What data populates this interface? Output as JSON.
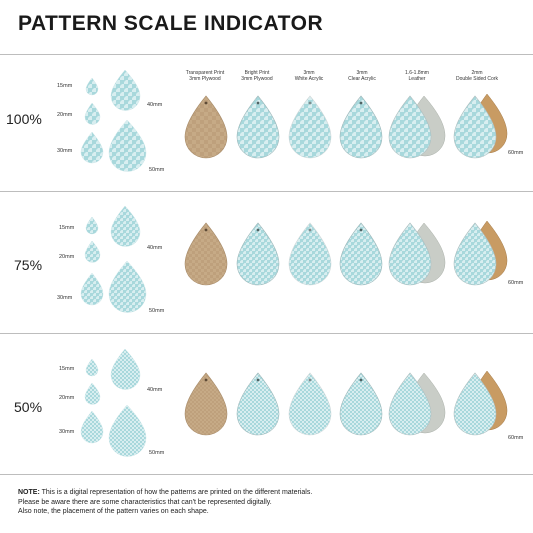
{
  "title": "PATTERN SCALE INDICATOR",
  "colors": {
    "pattern_light": "#cfe9ec",
    "pattern_dark": "#9fd3d8",
    "plywood": "#c8ad8b",
    "leather": "#c7ccc6",
    "cork": "#c79a63",
    "divider": "#bdbdbd"
  },
  "materials": [
    {
      "line1": "Transparent Print",
      "line2": "3mm Plywood"
    },
    {
      "line1": "Bright Print",
      "line2": "3mm Plywood"
    },
    {
      "line1": "3mm",
      "line2": "White Acrylic"
    },
    {
      "line1": "3mm",
      "line2": "Clear Acrylic"
    },
    {
      "line1": "1.6-1.8mm",
      "line2": "Leather"
    },
    {
      "line1": "2mm",
      "line2": "Double Sided Cork"
    }
  ],
  "rows": [
    {
      "scale": "100%",
      "sizes": {
        "s15": "15mm",
        "s20": "20mm",
        "s30": "30mm",
        "s40": "40mm",
        "s50": "50mm"
      },
      "side_label": "60mm"
    },
    {
      "scale": "75%",
      "sizes": {
        "s15": "15mm",
        "s20": "20mm",
        "s30": "30mm",
        "s40": "40mm",
        "s50": "50mm"
      },
      "side_label": "60mm"
    },
    {
      "scale": "50%",
      "sizes": {
        "s15": "15mm",
        "s20": "20mm",
        "s30": "30mm",
        "s40": "40mm",
        "s50": "50mm"
      },
      "side_label": "60mm"
    }
  ],
  "note": {
    "label": "NOTE:",
    "line1": "This is a digital representation of how the patterns are printed on the different materials.",
    "line2": "Please be aware there are some characteristics that can't be represented digitally.",
    "line3": "Also note, the placement of the pattern varies on each shape."
  }
}
